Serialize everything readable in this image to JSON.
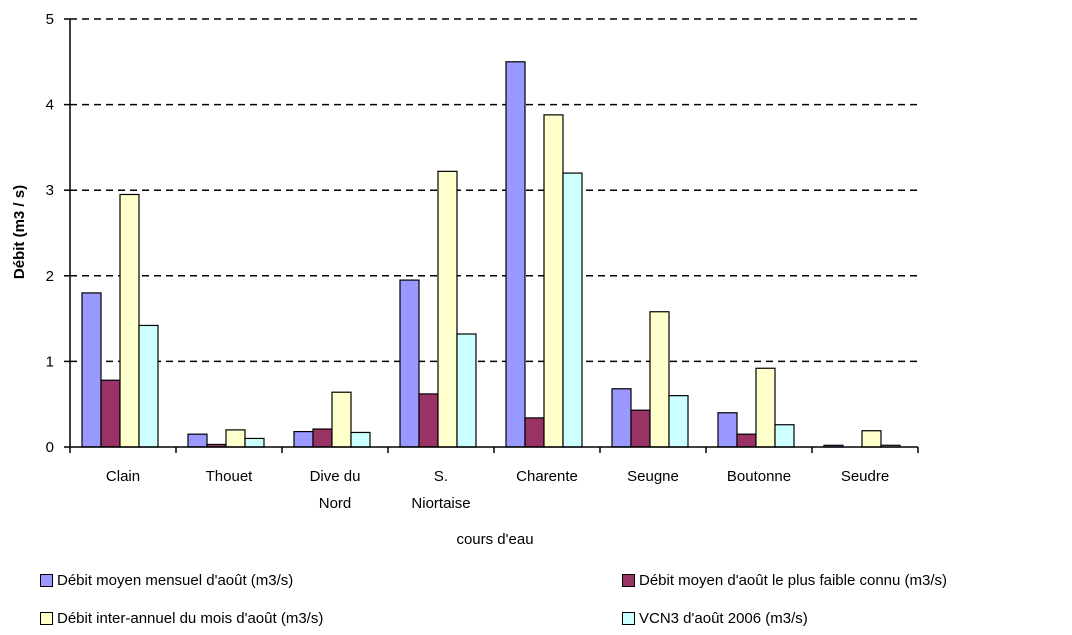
{
  "chart_data": {
    "type": "bar",
    "title": "",
    "xlabel": "cours d'eau",
    "ylabel": "Débit (m3 / s)",
    "ylim": [
      0,
      5
    ],
    "yticks": [
      "0",
      "1",
      "2",
      "3",
      "4",
      "5"
    ],
    "grid": "horizontal dashed",
    "legend_position": "bottom",
    "categories": [
      [
        "Clain"
      ],
      [
        "Thouet"
      ],
      [
        "Dive du",
        "Nord"
      ],
      [
        "S.",
        "Niortaise"
      ],
      [
        "Charente"
      ],
      [
        "Seugne"
      ],
      [
        "Boutonne"
      ],
      [
        "Seudre"
      ]
    ],
    "series": [
      {
        "name": "Débit moyen mensuel d'août (m3/s)",
        "color": "#9999ff",
        "values": [
          1.8,
          0.15,
          0.18,
          1.95,
          4.5,
          0.68,
          0.4,
          0.02
        ]
      },
      {
        "name": "Débit moyen d'août le plus faible connu (m3/s)",
        "color": "#993366",
        "values": [
          0.78,
          0.03,
          0.21,
          0.62,
          0.34,
          0.43,
          0.15,
          0.0
        ]
      },
      {
        "name": "Débit inter-annuel du mois d'août (m3/s)",
        "color": "#ffffcc",
        "values": [
          2.95,
          0.2,
          0.64,
          3.22,
          3.88,
          1.58,
          0.92,
          0.19
        ]
      },
      {
        "name": "VCN3 d'août 2006 (m3/s)",
        "color": "#ccffff",
        "values": [
          1.42,
          0.1,
          0.17,
          1.32,
          3.2,
          0.6,
          0.26,
          0.02
        ]
      }
    ]
  }
}
